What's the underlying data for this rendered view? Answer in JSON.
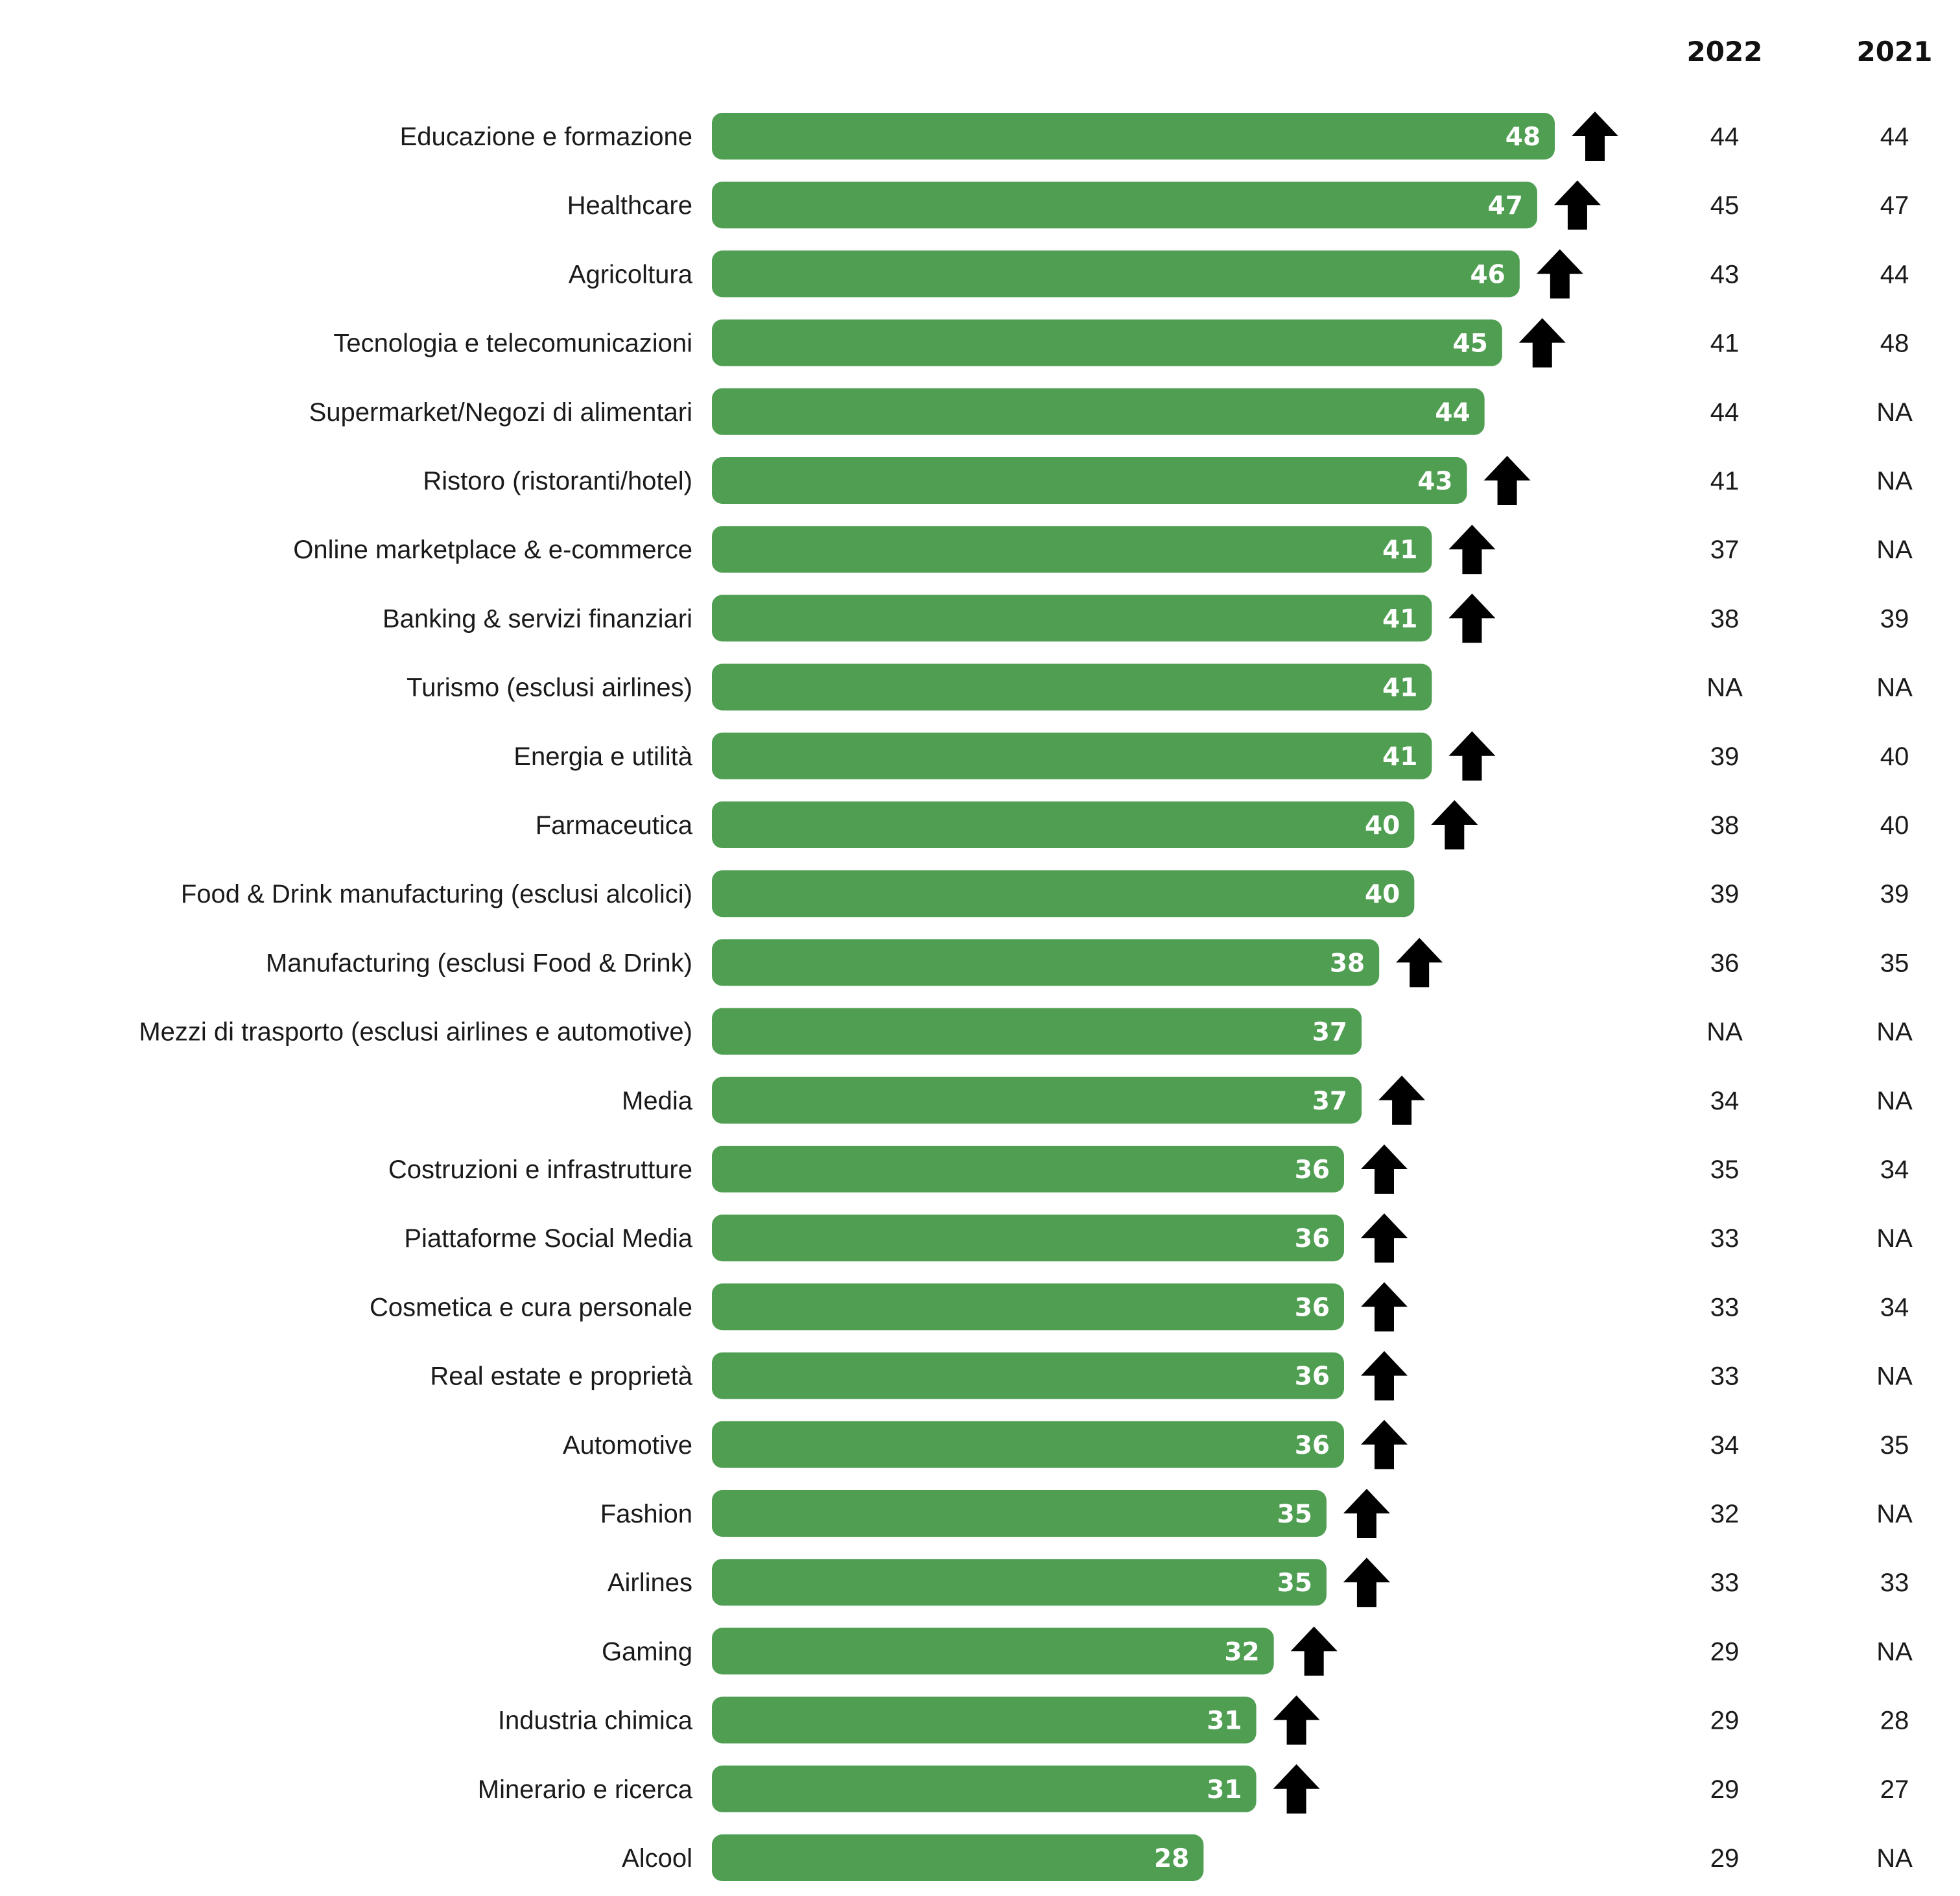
{
  "chart_data": {
    "type": "bar",
    "orientation": "horizontal",
    "bar_color": "#4f9e52",
    "arrow_color": "#000000",
    "column_headers": [
      "2022",
      "2021"
    ],
    "categories": [
      "Educazione e formazione",
      "Healthcare",
      "Agricoltura",
      "Tecnologia e telecomunicazioni",
      "Supermarket/Negozi di alimentari",
      "Ristoro (ristoranti/hotel)",
      "Online marketplace & e-commerce",
      "Banking & servizi finanziari",
      "Turismo (esclusi airlines)",
      "Energia e utilità",
      "Farmaceutica",
      "Food & Drink manufacturing (esclusi alcolici)",
      "Manufacturing (esclusi  Food & Drink)",
      "Mezzi di trasporto (esclusi airlines e automotive)",
      "Media",
      "Costruzioni e infrastrutture",
      "Piattaforme Social Media",
      "Cosmetica e cura personale",
      "Real estate e proprietà",
      "Automotive",
      "Fashion",
      "Airlines",
      "Gaming",
      "Industria chimica",
      "Minerario e ricerca",
      "Alcool"
    ],
    "values": [
      48,
      47,
      46,
      45,
      44,
      43,
      41,
      41,
      41,
      41,
      40,
      40,
      38,
      37,
      37,
      36,
      36,
      36,
      36,
      36,
      35,
      35,
      32,
      31,
      31,
      28
    ],
    "up_arrow": [
      true,
      true,
      true,
      true,
      false,
      true,
      true,
      true,
      false,
      true,
      true,
      false,
      true,
      false,
      true,
      true,
      true,
      true,
      true,
      true,
      true,
      true,
      true,
      true,
      true,
      false
    ],
    "values_2022": [
      "44",
      "45",
      "43",
      "41",
      "44",
      "41",
      "37",
      "38",
      "NA",
      "39",
      "38",
      "39",
      "36",
      "NA",
      "34",
      "35",
      "33",
      "33",
      "33",
      "34",
      "32",
      "33",
      "29",
      "29",
      "29",
      "29"
    ],
    "values_2021": [
      "44",
      "47",
      "44",
      "48",
      "NA",
      "NA",
      "NA",
      "39",
      "NA",
      "40",
      "40",
      "39",
      "35",
      "NA",
      "NA",
      "34",
      "NA",
      "34",
      "NA",
      "35",
      "NA",
      "33",
      "NA",
      "28",
      "27",
      "NA"
    ]
  }
}
